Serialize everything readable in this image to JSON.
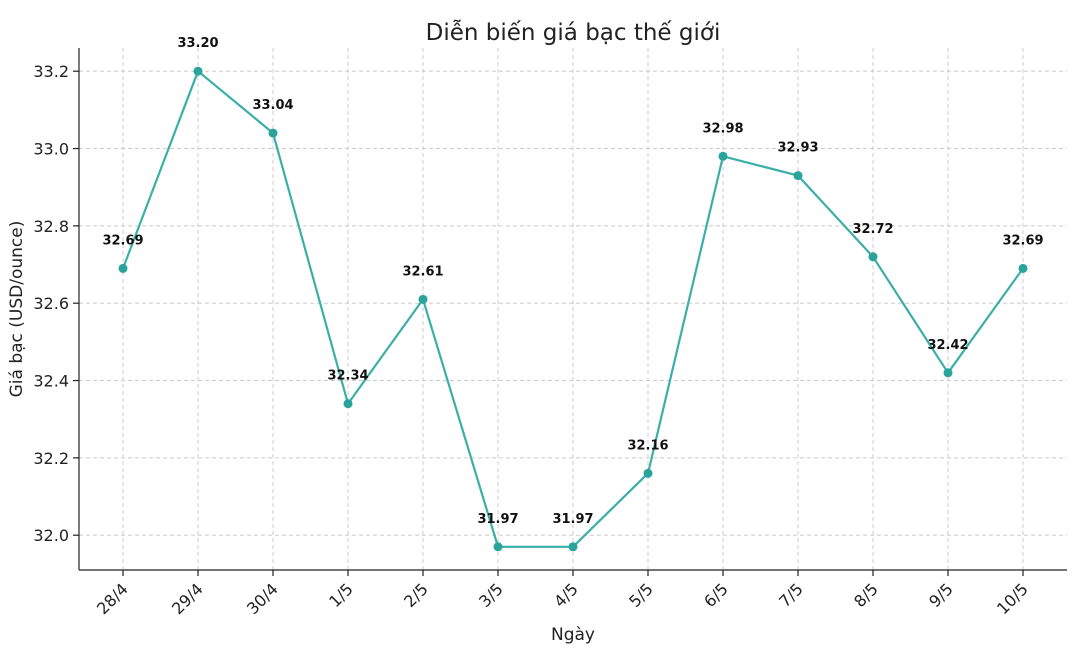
{
  "chart_data": {
    "type": "line",
    "title": "Diễn biến giá bạc thế giới",
    "xlabel": "Ngày",
    "ylabel": "Giá bạc (USD/ounce)",
    "categories": [
      "28/4",
      "29/4",
      "30/4",
      "1/5",
      "2/5",
      "3/5",
      "4/5",
      "5/5",
      "6/5",
      "7/5",
      "8/5",
      "9/5",
      "10/5"
    ],
    "values": [
      32.69,
      33.2,
      33.04,
      32.34,
      32.61,
      31.97,
      31.97,
      32.16,
      32.98,
      32.93,
      32.72,
      32.42,
      32.69
    ],
    "data_labels": [
      "32.69",
      "33.20",
      "33.04",
      "32.34",
      "32.61",
      "31.97",
      "31.97",
      "32.16",
      "32.98",
      "32.93",
      "32.72",
      "32.42",
      "32.69"
    ],
    "yticks": [
      32.0,
      32.2,
      32.4,
      32.6,
      32.8,
      33.0,
      33.2
    ],
    "ytick_labels": [
      "32.0",
      "32.2",
      "32.4",
      "32.6",
      "32.8",
      "33.0",
      "33.2"
    ],
    "ylim": [
      31.91,
      33.26
    ],
    "grid": true,
    "line_color": "#3aafa9",
    "marker_color": "#2aa39b"
  }
}
